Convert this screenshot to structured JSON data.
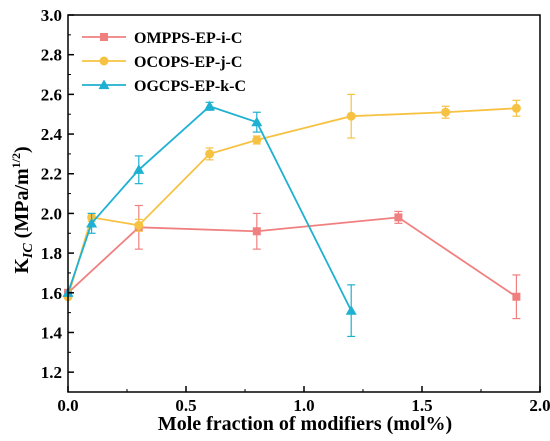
{
  "chart_data": {
    "type": "line",
    "xlabel": "Mole fraction of modifiers (mol%)",
    "ylabel": {
      "main": "K",
      "sub": "IC",
      "unit": " (MPa/m",
      "sup": "1/2",
      "close": ")"
    },
    "xlim": [
      0.0,
      2.0
    ],
    "ylim": [
      1.1,
      3.0
    ],
    "x_ticks": [
      "0.0",
      "0.5",
      "1.0",
      "1.5",
      "2.0"
    ],
    "y_ticks": [
      "1.2",
      "1.4",
      "1.6",
      "1.8",
      "2.0",
      "2.2",
      "2.4",
      "2.6",
      "2.8",
      "3.0"
    ],
    "grid": false,
    "legend_position": "top-left",
    "series": [
      {
        "name": "OMPPS-EP-i-C",
        "color": "#f08080",
        "marker": "square",
        "x": [
          0.0,
          0.3,
          0.8,
          1.4,
          1.9
        ],
        "y": [
          1.6,
          1.93,
          1.91,
          1.98,
          1.58
        ],
        "err": [
          0.0,
          0.11,
          0.09,
          0.03,
          0.11
        ]
      },
      {
        "name": "OCOPS-EP-j-C",
        "color": "#f7c242",
        "marker": "circle",
        "x": [
          0.0,
          0.1,
          0.3,
          0.6,
          0.8,
          1.2,
          1.6,
          1.9
        ],
        "y": [
          1.58,
          1.98,
          1.94,
          2.3,
          2.37,
          2.49,
          2.51,
          2.53
        ],
        "err": [
          0.0,
          0.02,
          0.03,
          0.03,
          0.02,
          0.11,
          0.03,
          0.04
        ]
      },
      {
        "name": "OGCPS-EP-k-C",
        "color": "#1fb1d1",
        "marker": "triangle",
        "x": [
          0.0,
          0.1,
          0.3,
          0.6,
          0.8,
          1.2
        ],
        "y": [
          1.6,
          1.95,
          2.22,
          2.54,
          2.46,
          1.51
        ],
        "err": [
          0.0,
          0.05,
          0.07,
          0.02,
          0.05,
          0.13
        ]
      }
    ]
  }
}
